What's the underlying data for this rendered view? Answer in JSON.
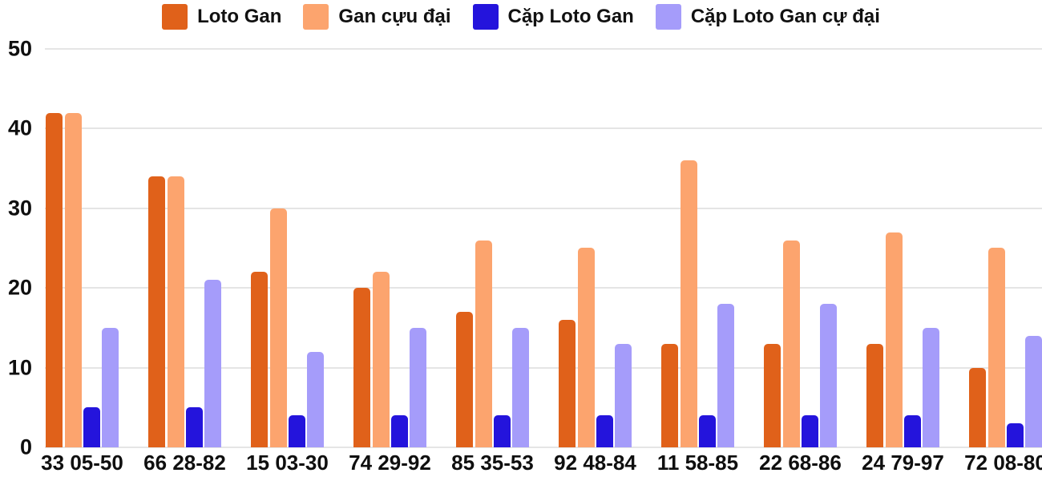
{
  "colors": {
    "grid": "#e5e5e5",
    "text": "#0f0f0f",
    "background": "#ffffff"
  },
  "chart_data": {
    "type": "bar",
    "categories": [
      "33 05-50",
      "66 28-82",
      "15 03-30",
      "74 29-92",
      "85 35-53",
      "92 48-84",
      "11 58-85",
      "22 68-86",
      "24 79-97",
      "72 08-80"
    ],
    "series": [
      {
        "name": "Loto Gan",
        "color": "#e0611a",
        "values": [
          42,
          34,
          22,
          20,
          17,
          16,
          13,
          13,
          13,
          10
        ]
      },
      {
        "name": "Gan cựu đại",
        "color": "#fca46e",
        "values": [
          42,
          34,
          30,
          22,
          26,
          25,
          36,
          26,
          27,
          25
        ]
      },
      {
        "name": "Cặp Loto Gan",
        "color": "#2414dc",
        "values": [
          5,
          5,
          4,
          4,
          4,
          4,
          4,
          4,
          4,
          3
        ]
      },
      {
        "name": "Cặp Loto Gan cự đại",
        "color": "#a59cfa",
        "values": [
          15,
          21,
          12,
          15,
          15,
          13,
          18,
          18,
          15,
          14
        ]
      }
    ],
    "title": "",
    "xlabel": "",
    "ylabel": "",
    "ylim": [
      0,
      50
    ],
    "yticks": [
      0,
      10,
      20,
      30,
      40,
      50
    ],
    "grid": "horizontal",
    "legend_position": "top"
  }
}
